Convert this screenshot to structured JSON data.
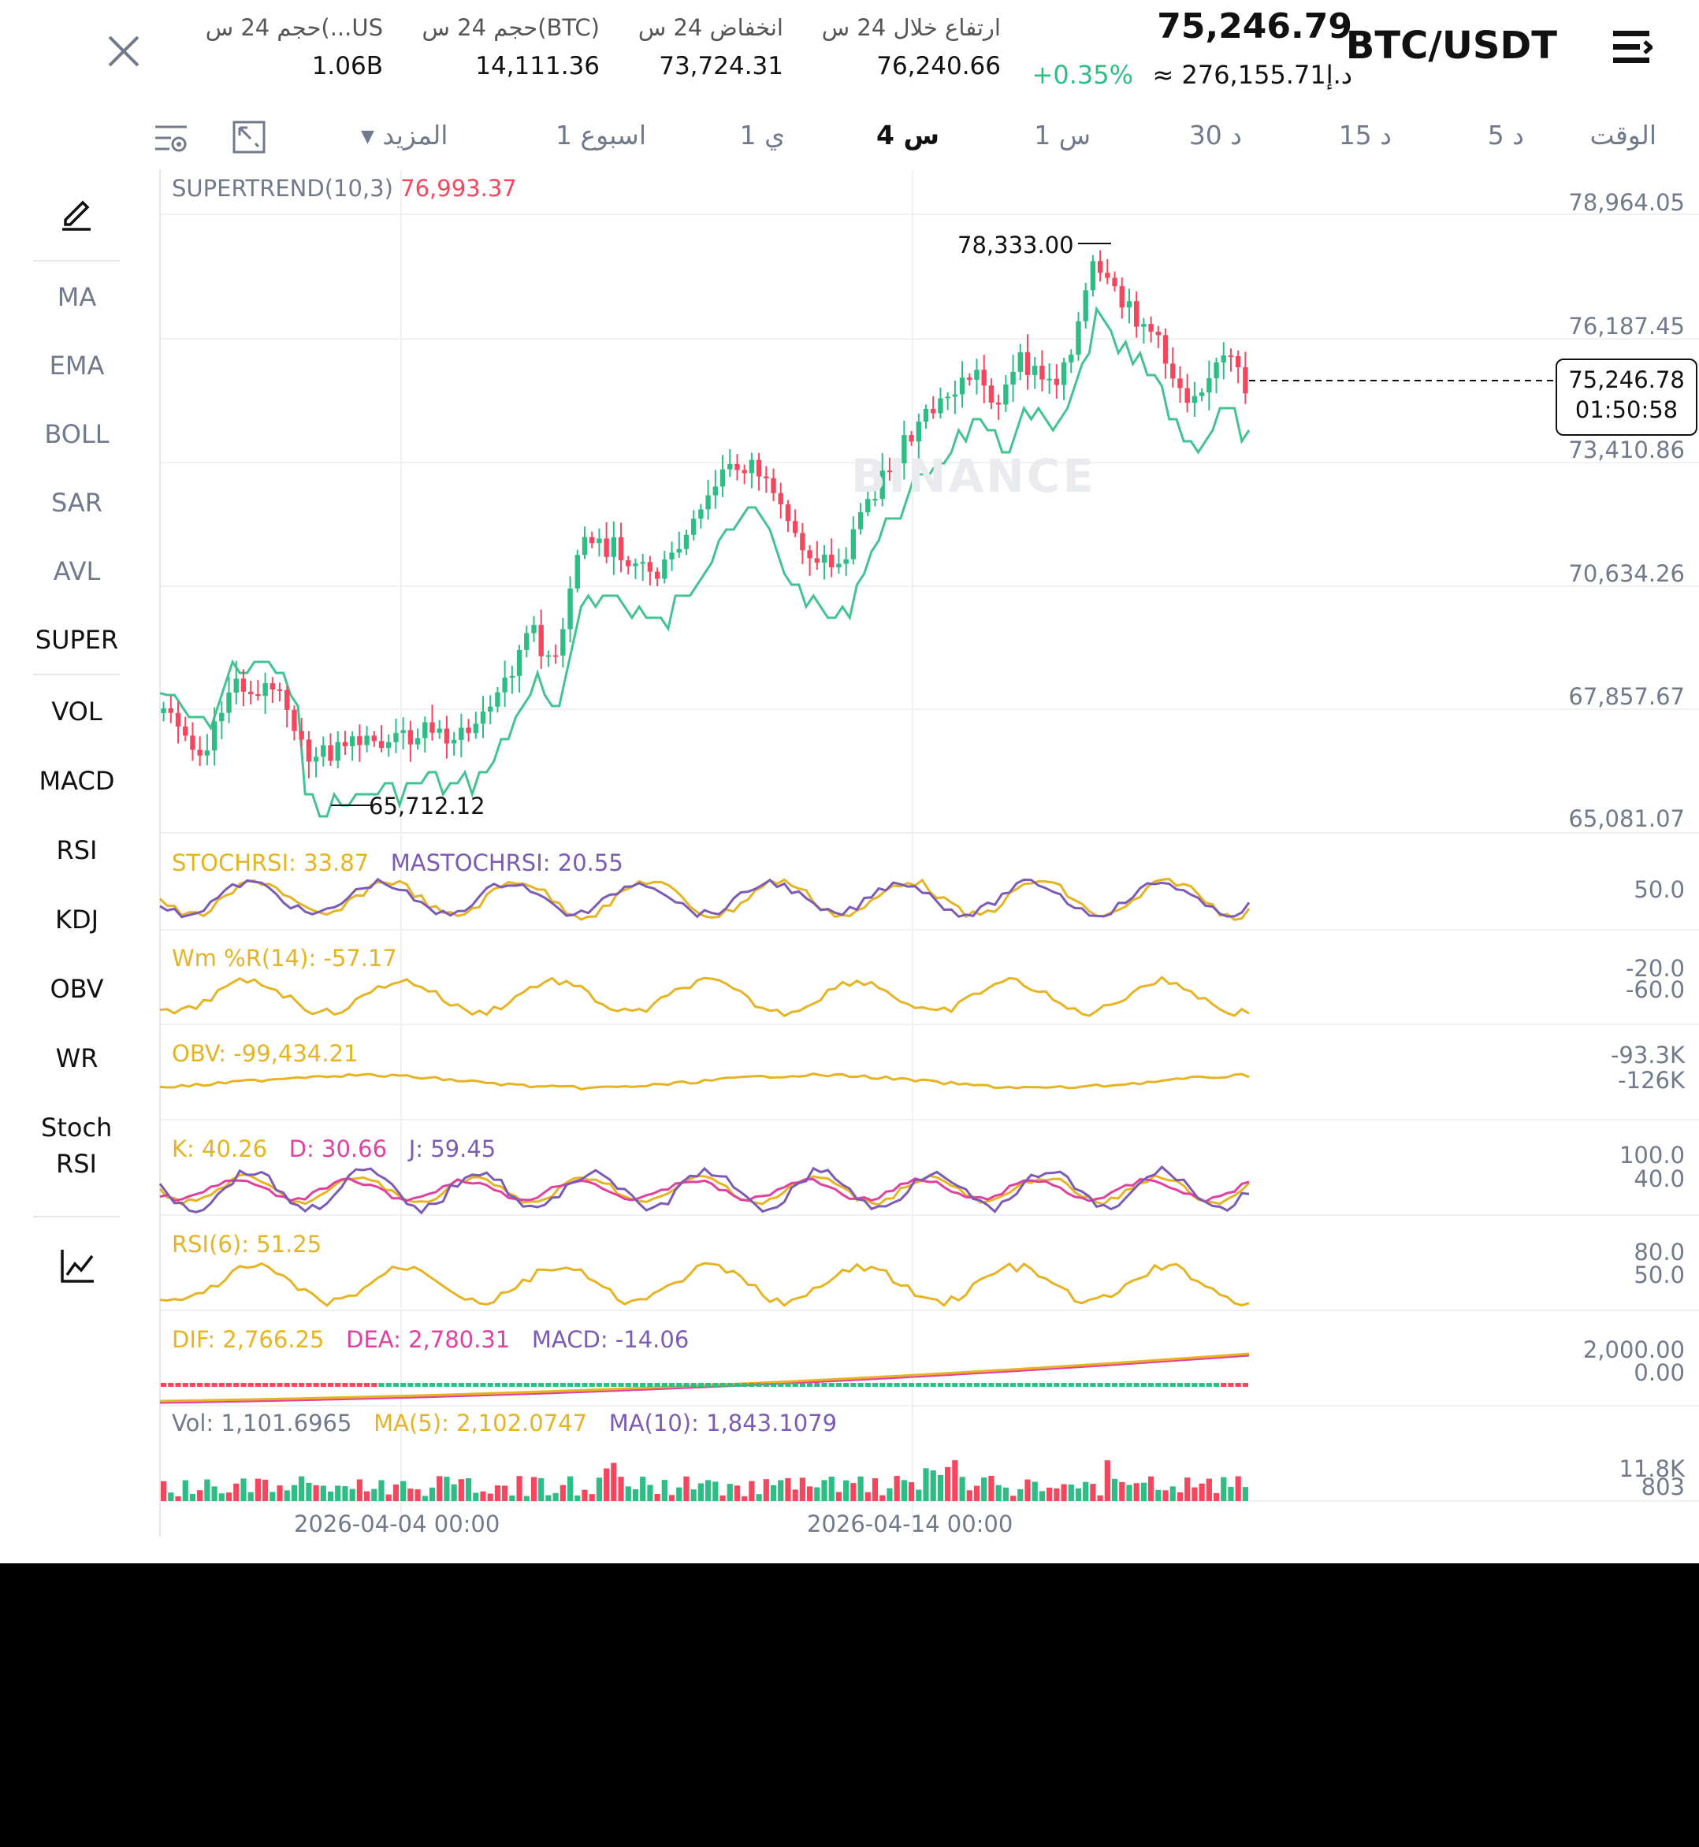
{
  "header": {
    "pair": "BTC/USDT",
    "last_price": "75,246.79",
    "change_pct": "+0.35%",
    "fiat_price": "≈ د.إ276,155.71",
    "stats": [
      {
        "label": "ارتفاع خلال 24 س",
        "value": "76,240.66"
      },
      {
        "label": "انخفاض 24 س",
        "value": "73,724.31"
      },
      {
        "label": "حجم 24 س(BTC)",
        "value": "14,111.36"
      },
      {
        "label": "حجم 24 س(...US",
        "value": "1.06B"
      }
    ]
  },
  "timeframes": [
    {
      "label": "الوقت",
      "active": false
    },
    {
      "label": "5 د",
      "active": false
    },
    {
      "label": "15 د",
      "active": false
    },
    {
      "label": "30 د",
      "active": false
    },
    {
      "label": "1 س",
      "active": false
    },
    {
      "label": "4 س",
      "active": true
    },
    {
      "label": "1 ي",
      "active": false
    },
    {
      "label": "1 اسبوع",
      "active": false
    }
  ],
  "more_label": "المزيد",
  "sidebar": {
    "top_items": [
      "MA",
      "EMA",
      "BOLL",
      "SAR",
      "AVL",
      "SUPER"
    ],
    "bottom_items": [
      "VOL",
      "MACD",
      "RSI",
      "KDJ",
      "OBV",
      "WR",
      "Stoch RSI"
    ],
    "active_top": "SUPER"
  },
  "main_chart": {
    "indicator_label": "SUPERTREND(10,3)",
    "indicator_value": "76,993.37",
    "price_axis": [
      "78,964.05",
      "76,187.45",
      "73,410.86",
      "70,634.26",
      "67,857.67",
      "65,081.07"
    ],
    "high_marker": "78,333.00",
    "low_marker": "65,712.12",
    "current_price": "75,246.78",
    "countdown": "01:50:58",
    "watermark": "BINANCE",
    "x_axis": [
      "2026-04-04 00:00",
      "2026-04-14 00:00"
    ]
  },
  "panels": {
    "stochrsi": {
      "a_label": "STOCHRSI: 33.87",
      "b_label": "MASTOCHRSI: 20.55",
      "axis": [
        "50.0"
      ],
      "color_a": "#e6b422",
      "color_b": "#7b5bb5"
    },
    "wr": {
      "a_label": "Wm %R(14): -57.17",
      "axis": [
        "-20.0",
        "-60.0"
      ],
      "color_a": "#e6b422"
    },
    "obv": {
      "a_label": "OBV: -99,434.21",
      "axis": [
        "-93.3K",
        "-126K"
      ],
      "color_a": "#e6b422"
    },
    "kdj": {
      "k_label": "K: 40.26",
      "d_label": "D: 30.66",
      "j_label": "J: 59.45",
      "axis": [
        "100.0",
        "40.0"
      ],
      "color_k": "#e6b422",
      "color_d": "#e040a0",
      "color_j": "#7b5bb5"
    },
    "rsi": {
      "a_label": "RSI(6): 51.25",
      "axis": [
        "80.0",
        "50.0"
      ],
      "color_a": "#e6b422"
    },
    "macd": {
      "dif_label": "DIF: 2,766.25",
      "dea_label": "DEA: 2,780.31",
      "macd_label": "MACD: -14.06",
      "axis": [
        "2,000.00",
        "0.00"
      ]
    },
    "vol": {
      "vol_label": "Vol: 1,101.6965",
      "ma5_label": "MA(5): 2,102.0747",
      "ma10_label": "MA(10): 1,843.1079",
      "axis": [
        "11.8K",
        "803"
      ]
    }
  },
  "colors": {
    "up": "#2ebd85",
    "down": "#f6465d",
    "accent_text": "#111111",
    "muted": "#707a8a"
  }
}
